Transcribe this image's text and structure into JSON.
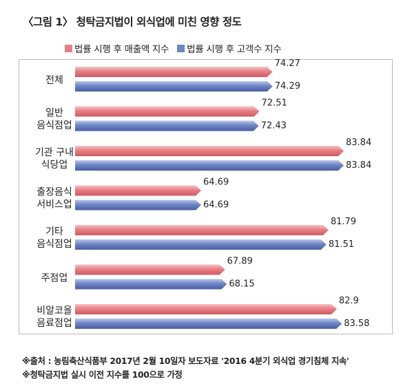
{
  "title": "〈그림 1〉 청탁금지법이 외식업에 미친 영향 정도",
  "colors": {
    "series1": "#e87f86",
    "series1_dark": "#cf5a62",
    "series1_light": "#f6c2c5",
    "series2": "#6f86c6",
    "series2_dark": "#4a5fa2",
    "series2_light": "#b9c5ea",
    "frame": "#b9b9b9"
  },
  "chart_data": {
    "type": "bar",
    "orientation": "horizontal",
    "categories": [
      [
        "전체"
      ],
      [
        "일반",
        "음식점업"
      ],
      [
        "기관 구내",
        "식당업"
      ],
      [
        "출장음식",
        "서비스업"
      ],
      [
        "기타",
        "음식점업"
      ],
      [
        "주점업"
      ],
      [
        "비알코올",
        "음료점업"
      ]
    ],
    "value_labels": [
      [
        "74.27",
        "74.29"
      ],
      [
        "72.51",
        "72.43"
      ],
      [
        "83.84",
        "83.84"
      ],
      [
        "64.69",
        "64.69"
      ],
      [
        "81.79",
        "81.51"
      ],
      [
        "67.89",
        "68.15"
      ],
      [
        "82.9",
        "83.58"
      ]
    ],
    "series": [
      {
        "name": "법률 시행 후 매출액 지수",
        "values": [
          74.27,
          72.51,
          83.84,
          64.69,
          81.79,
          67.89,
          82.9
        ]
      },
      {
        "name": "법률 시행 후 고객수 지수",
        "values": [
          74.29,
          72.43,
          83.84,
          64.69,
          81.51,
          68.15,
          83.58
        ]
      }
    ],
    "legend_position": "top",
    "grid": false
  },
  "footnotes": [
    "※출처 : 농림축산식품부 2017년 2월 10일자 보도자료 '2016 4분기 외식업 경기침체 지속'",
    "※청탁금지법 실시 이전 지수를 100으로 가정"
  ]
}
